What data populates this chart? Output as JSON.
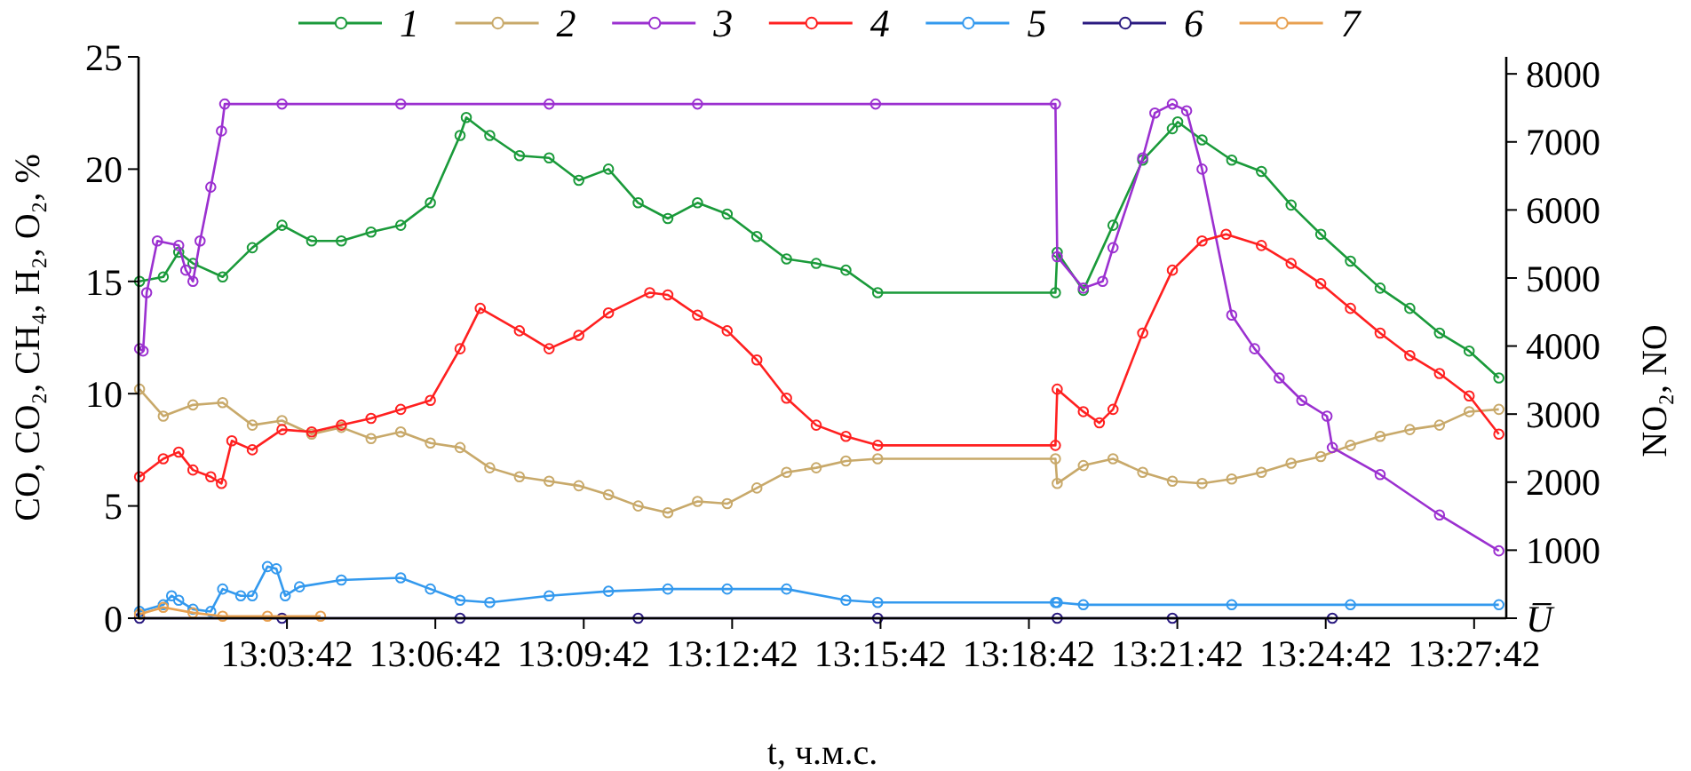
{
  "chart_data": {
    "type": "line",
    "xlabel": "t, ч.м.с.",
    "ylabel": "CO, CO₂, CH₄, H₂, O₂, %",
    "y2label": "NO₂, NO",
    "xlim": [
      13.011667,
      13.4725
    ],
    "xticks": [
      {
        "value": 13.061667,
        "label": "13:03:42"
      },
      {
        "value": 13.111667,
        "label": "13:06:42"
      },
      {
        "value": 13.161667,
        "label": "13:09:42"
      },
      {
        "value": 13.211667,
        "label": "13:12:42"
      },
      {
        "value": 13.261667,
        "label": "13:15:42"
      },
      {
        "value": 13.311667,
        "label": "13:18:42"
      },
      {
        "value": 13.361667,
        "label": "13:21:42"
      },
      {
        "value": 13.411667,
        "label": "13:24:42"
      },
      {
        "value": 13.461667,
        "label": "13:27:42"
      }
    ],
    "ylim": [
      0,
      25
    ],
    "yticks": [
      0,
      5,
      10,
      15,
      20,
      25
    ],
    "y2lim": [
      0,
      8250
    ],
    "y2ticks": [
      {
        "value": 0,
        "label": "U̅"
      },
      1000,
      2000,
      3000,
      4000,
      5000,
      6000,
      7000,
      8000
    ],
    "legend": "top",
    "marker": "circle",
    "series": [
      {
        "name": "1",
        "color": "#1a9a3a",
        "x": [
          13.012,
          13.02,
          13.0252,
          13.03,
          13.04,
          13.05,
          13.06,
          13.07,
          13.08,
          13.09,
          13.1,
          13.11,
          13.12,
          13.1221,
          13.13,
          13.14,
          13.15,
          13.16,
          13.17,
          13.18,
          13.19,
          13.2,
          13.21,
          13.22,
          13.23,
          13.24,
          13.25,
          13.2607,
          13.3206,
          13.3212,
          13.33,
          13.34,
          13.35,
          13.36,
          13.3618,
          13.37,
          13.38,
          13.39,
          13.4,
          13.41,
          13.42,
          13.43,
          13.44,
          13.45,
          13.46,
          13.47
        ],
        "values": [
          15,
          15.2,
          16.3,
          15.8,
          15.2,
          16.5,
          17.5,
          16.8,
          16.8,
          17.2,
          17.5,
          18.5,
          21.5,
          22.3,
          21.5,
          20.6,
          20.5,
          19.5,
          20,
          18.5,
          17.8,
          18.5,
          18,
          17,
          16,
          15.8,
          15.5,
          14.5,
          14.5,
          16.3,
          14.6,
          17.5,
          20.4,
          21.8,
          22.1,
          21.3,
          20.4,
          19.9,
          18.4,
          17.1,
          15.9,
          14.7,
          13.8,
          12.7,
          11.9,
          10.7
        ]
      },
      {
        "name": "2",
        "color": "#c8a96a",
        "x": [
          13.012,
          13.02,
          13.03,
          13.04,
          13.05,
          13.06,
          13.07,
          13.08,
          13.09,
          13.1,
          13.11,
          13.12,
          13.13,
          13.14,
          13.15,
          13.16,
          13.17,
          13.18,
          13.19,
          13.2,
          13.21,
          13.22,
          13.23,
          13.24,
          13.25,
          13.2607,
          13.3206,
          13.3212,
          13.33,
          13.34,
          13.35,
          13.36,
          13.37,
          13.38,
          13.39,
          13.4,
          13.41,
          13.42,
          13.43,
          13.44,
          13.45,
          13.46,
          13.47
        ],
        "values": [
          10.2,
          9,
          9.5,
          9.6,
          8.6,
          8.8,
          8.2,
          8.5,
          8,
          8.3,
          7.8,
          7.6,
          6.7,
          6.3,
          6.1,
          5.9,
          5.5,
          5,
          4.7,
          5.2,
          5.1,
          5.8,
          6.5,
          6.7,
          7,
          7.1,
          7.1,
          6,
          6.8,
          7.1,
          6.5,
          6.1,
          6,
          6.2,
          6.5,
          6.9,
          7.2,
          7.7,
          8.1,
          8.4,
          8.6,
          9.2,
          9.3
        ]
      },
      {
        "name": "3",
        "color": "#9b30d0",
        "x": [
          13.012,
          13.0132,
          13.0144,
          13.018,
          13.0252,
          13.0276,
          13.03,
          13.0324,
          13.036,
          13.0396,
          13.0407,
          13.06,
          13.1,
          13.15,
          13.2,
          13.26,
          13.3206,
          13.3212,
          13.33,
          13.3365,
          13.34,
          13.35,
          13.3541,
          13.36,
          13.3648,
          13.37,
          13.38,
          13.3877,
          13.396,
          13.4036,
          13.4121,
          13.4139,
          13.43,
          13.45,
          13.47
        ],
        "values": [
          12,
          11.9,
          14.5,
          16.8,
          16.6,
          15.5,
          15,
          16.8,
          19.2,
          21.7,
          22.9,
          22.9,
          22.9,
          22.9,
          22.9,
          22.9,
          22.9,
          16.1,
          14.7,
          15,
          16.5,
          20.5,
          22.5,
          22.9,
          22.6,
          20,
          13.5,
          12,
          10.7,
          9.7,
          9,
          7.6,
          6.4,
          4.6,
          3
        ]
      },
      {
        "name": "4",
        "color": "#ff2020",
        "x": [
          13.012,
          13.02,
          13.0252,
          13.03,
          13.036,
          13.0396,
          13.0431,
          13.05,
          13.06,
          13.07,
          13.08,
          13.09,
          13.1,
          13.11,
          13.12,
          13.1268,
          13.14,
          13.15,
          13.16,
          13.17,
          13.1839,
          13.19,
          13.2,
          13.21,
          13.22,
          13.23,
          13.24,
          13.25,
          13.2607,
          13.3206,
          13.3212,
          13.33,
          13.3354,
          13.34,
          13.35,
          13.36,
          13.37,
          13.3781,
          13.39,
          13.4,
          13.41,
          13.42,
          13.43,
          13.44,
          13.45,
          13.46,
          13.47
        ],
        "values": [
          6.3,
          7.1,
          7.4,
          6.6,
          6.3,
          6,
          7.9,
          7.5,
          8.4,
          8.3,
          8.6,
          8.9,
          9.3,
          9.7,
          12,
          13.8,
          12.8,
          12,
          12.6,
          13.6,
          14.5,
          14.4,
          13.5,
          12.8,
          11.5,
          9.8,
          8.6,
          8.1,
          7.7,
          7.7,
          10.2,
          9.2,
          8.7,
          9.3,
          12.7,
          15.5,
          16.8,
          17.1,
          16.6,
          15.8,
          14.9,
          13.8,
          12.7,
          11.7,
          10.9,
          9.9,
          8.2
        ]
      },
      {
        "name": "5",
        "color": "#3399ee",
        "x": [
          13.012,
          13.02,
          13.0228,
          13.0252,
          13.03,
          13.036,
          13.04,
          13.0461,
          13.05,
          13.0551,
          13.0581,
          13.0611,
          13.0659,
          13.08,
          13.1,
          13.11,
          13.12,
          13.13,
          13.15,
          13.17,
          13.19,
          13.21,
          13.23,
          13.25,
          13.2607,
          13.3206,
          13.3212,
          13.33,
          13.38,
          13.42,
          13.47
        ],
        "values": [
          0.3,
          0.6,
          1,
          0.8,
          0.4,
          0.3,
          1.3,
          1,
          1,
          2.3,
          2.2,
          1,
          1.4,
          1.7,
          1.8,
          1.3,
          0.8,
          0.7,
          1,
          1.2,
          1.3,
          1.3,
          1.3,
          0.8,
          0.7,
          0.7,
          0.7,
          0.6,
          0.6,
          0.6,
          0.6
        ]
      },
      {
        "name": "6",
        "color": "#2a1a80",
        "axis": "y2",
        "x": [
          13.012,
          13.06,
          13.12,
          13.18,
          13.2607,
          13.3212,
          13.36,
          13.4139
        ],
        "values": [
          0,
          0,
          0,
          0,
          0,
          0,
          0,
          0
        ]
      },
      {
        "name": "7",
        "color": "#e8a050",
        "axis": "y2",
        "x": [
          13.012,
          13.02,
          13.03,
          13.04,
          13.0551,
          13.073
        ],
        "values": [
          60,
          160,
          80,
          30,
          30,
          30
        ]
      }
    ]
  }
}
